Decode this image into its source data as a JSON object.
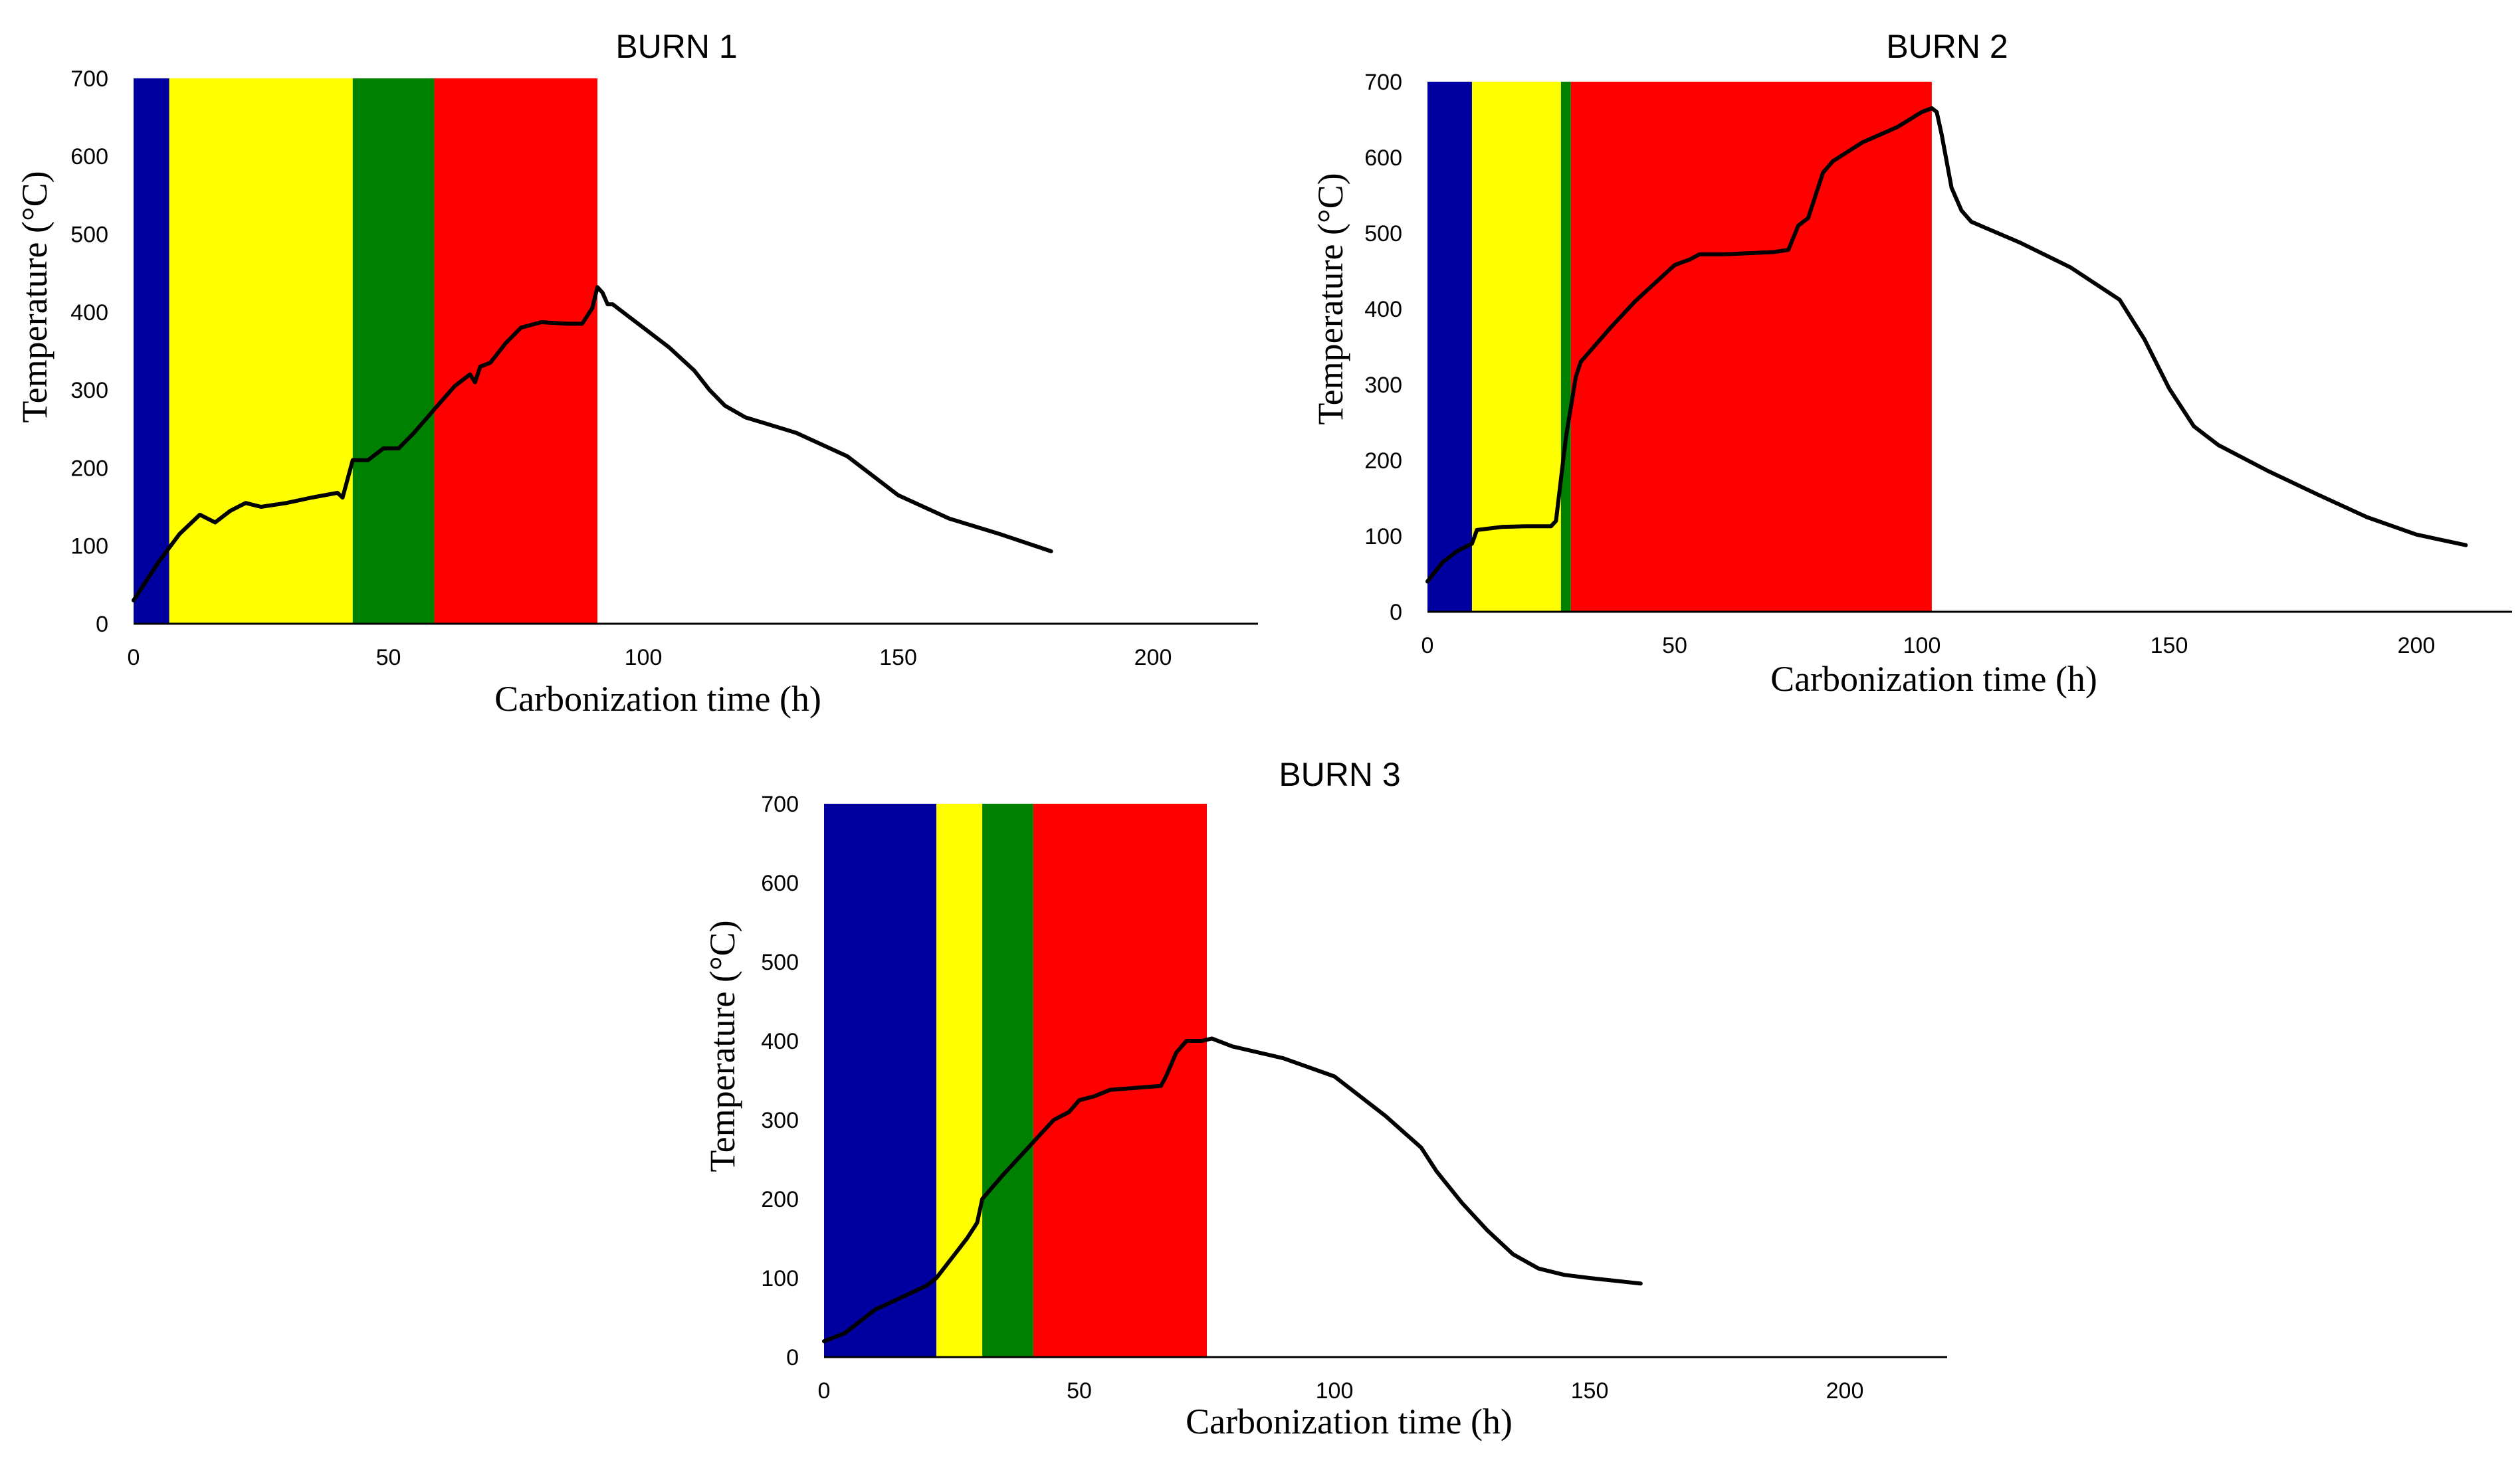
{
  "chart_data": [
    {
      "type": "line",
      "title": "BURN 1",
      "xlabel": "Carbonization time (h)",
      "ylabel": "Temperature (°C)",
      "xlim": [
        0,
        220
      ],
      "ylim": [
        0,
        700
      ],
      "xticks": [
        0,
        50,
        100,
        150,
        200
      ],
      "yticks": [
        0,
        100,
        200,
        300,
        400,
        500,
        600,
        700
      ],
      "phases": [
        {
          "name": "phase-blue",
          "start": 0,
          "end": 7,
          "color": "#0000A0"
        },
        {
          "name": "phase-yellow",
          "start": 7,
          "end": 43,
          "color": "#FFFF00"
        },
        {
          "name": "phase-green",
          "start": 43,
          "end": 59,
          "color": "#008000"
        },
        {
          "name": "phase-red",
          "start": 59,
          "end": 91,
          "color": "#FF0000"
        }
      ],
      "series": [
        {
          "name": "Temperature",
          "x": [
            0,
            5,
            9,
            13,
            16,
            19,
            22,
            25,
            30,
            35,
            40,
            41,
            43,
            46,
            49,
            52,
            55,
            59,
            63,
            66,
            67,
            68,
            70,
            73,
            76,
            80,
            85,
            88,
            90,
            91,
            92,
            93,
            94,
            97,
            100,
            105,
            110,
            113,
            116,
            120,
            130,
            140,
            145,
            150,
            160,
            170,
            180
          ],
          "y": [
            30,
            80,
            115,
            140,
            130,
            145,
            155,
            150,
            155,
            162,
            168,
            162,
            210,
            210,
            225,
            225,
            245,
            275,
            305,
            320,
            310,
            330,
            335,
            360,
            380,
            387,
            385,
            385,
            405,
            432,
            425,
            410,
            410,
            395,
            380,
            355,
            325,
            300,
            280,
            265,
            245,
            215,
            190,
            165,
            135,
            115,
            93
          ]
        }
      ]
    },
    {
      "type": "line",
      "title": "BURN 2",
      "xlabel": "Carbonization time (h)",
      "ylabel": "Temperature (°C)",
      "xlim": [
        0,
        220
      ],
      "ylim": [
        0,
        700
      ],
      "xticks": [
        0,
        50,
        100,
        150,
        200
      ],
      "yticks": [
        0,
        100,
        200,
        300,
        400,
        500,
        600,
        700
      ],
      "phases": [
        {
          "name": "phase-blue",
          "start": 0,
          "end": 9,
          "color": "#0000A0"
        },
        {
          "name": "phase-yellow",
          "start": 9,
          "end": 27,
          "color": "#FFFF00"
        },
        {
          "name": "phase-green",
          "start": 27,
          "end": 29,
          "color": "#008000"
        },
        {
          "name": "phase-red",
          "start": 29,
          "end": 102,
          "color": "#FF0000"
        }
      ],
      "series": [
        {
          "name": "Temperature",
          "x": [
            0,
            3,
            6,
            9,
            10,
            15,
            20,
            25,
            26,
            28,
            30,
            31,
            33,
            37,
            42,
            47,
            50,
            53,
            55,
            60,
            70,
            73,
            75,
            77,
            80,
            82,
            88,
            95,
            100,
            102,
            103,
            104,
            106,
            108,
            110,
            120,
            130,
            140,
            145,
            150,
            155,
            160,
            170,
            180,
            190,
            200,
            210
          ],
          "y": [
            40,
            65,
            80,
            90,
            108,
            112,
            113,
            113,
            120,
            230,
            310,
            330,
            345,
            375,
            410,
            440,
            458,
            465,
            472,
            472,
            475,
            478,
            510,
            520,
            580,
            595,
            620,
            640,
            660,
            665,
            660,
            630,
            560,
            530,
            515,
            487,
            455,
            412,
            360,
            295,
            245,
            220,
            186,
            155,
            125,
            102,
            88
          ]
        }
      ]
    },
    {
      "type": "line",
      "title": "BURN 3",
      "xlabel": "Carbonization time (h)",
      "ylabel": "Temperature (°C)",
      "xlim": [
        0,
        220
      ],
      "ylim": [
        0,
        700
      ],
      "xticks": [
        0,
        50,
        100,
        150,
        200
      ],
      "yticks": [
        0,
        100,
        200,
        300,
        400,
        500,
        600,
        700
      ],
      "phases": [
        {
          "name": "phase-blue",
          "start": 0,
          "end": 22,
          "color": "#0000A0"
        },
        {
          "name": "phase-yellow",
          "start": 22,
          "end": 31,
          "color": "#FFFF00"
        },
        {
          "name": "phase-green",
          "start": 31,
          "end": 41,
          "color": "#008000"
        },
        {
          "name": "phase-red",
          "start": 41,
          "end": 75,
          "color": "#FF0000"
        }
      ],
      "series": [
        {
          "name": "Temperature",
          "x": [
            0,
            4,
            7,
            10,
            15,
            20,
            22,
            25,
            28,
            30,
            31,
            35,
            40,
            45,
            48,
            50,
            53,
            56,
            60,
            66,
            67,
            69,
            71,
            74,
            76,
            80,
            90,
            100,
            110,
            117,
            120,
            125,
            130,
            135,
            140,
            145,
            150,
            160
          ],
          "y": [
            20,
            30,
            45,
            60,
            75,
            90,
            100,
            125,
            150,
            170,
            200,
            230,
            265,
            300,
            310,
            325,
            330,
            338,
            340,
            343,
            355,
            385,
            400,
            400,
            403,
            393,
            378,
            355,
            305,
            265,
            235,
            195,
            160,
            130,
            112,
            104,
            100,
            93
          ]
        }
      ]
    }
  ]
}
